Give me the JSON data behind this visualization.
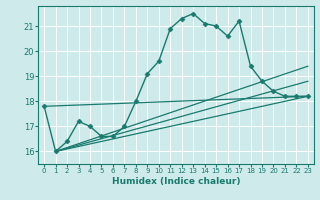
{
  "xlabel": "Humidex (Indice chaleur)",
  "bg_color": "#ceeaea",
  "grid_color": "#ffffff",
  "line_color": "#1a7a6e",
  "xlim": [
    -0.5,
    23.5
  ],
  "ylim": [
    15.5,
    21.8
  ],
  "yticks": [
    16,
    17,
    18,
    19,
    20,
    21
  ],
  "xticks": [
    0,
    1,
    2,
    3,
    4,
    5,
    6,
    7,
    8,
    9,
    10,
    11,
    12,
    13,
    14,
    15,
    16,
    17,
    18,
    19,
    20,
    21,
    22,
    23
  ],
  "lines": [
    {
      "x": [
        0,
        1,
        2,
        3,
        4,
        5,
        6,
        7,
        8,
        9,
        10,
        11,
        12,
        13,
        14,
        15,
        16,
        17,
        18,
        19,
        20,
        21,
        22,
        23
      ],
      "y": [
        17.8,
        16.0,
        16.4,
        17.2,
        17.0,
        16.6,
        16.6,
        17.0,
        18.0,
        19.1,
        19.6,
        20.9,
        21.3,
        21.5,
        21.1,
        21.0,
        20.6,
        21.2,
        19.4,
        18.8,
        18.4,
        18.2,
        18.2,
        18.2
      ],
      "marker": "D",
      "markersize": 2.5,
      "lw": 1.0
    },
    {
      "x": [
        0,
        23
      ],
      "y": [
        17.8,
        18.2
      ],
      "marker": null,
      "markersize": 0,
      "lw": 0.9
    },
    {
      "x": [
        1,
        23
      ],
      "y": [
        16.0,
        18.2
      ],
      "marker": null,
      "markersize": 0,
      "lw": 0.9
    },
    {
      "x": [
        1,
        23
      ],
      "y": [
        16.0,
        18.8
      ],
      "marker": null,
      "markersize": 0,
      "lw": 0.9
    },
    {
      "x": [
        1,
        23
      ],
      "y": [
        16.0,
        19.4
      ],
      "marker": null,
      "markersize": 0,
      "lw": 0.9
    }
  ]
}
